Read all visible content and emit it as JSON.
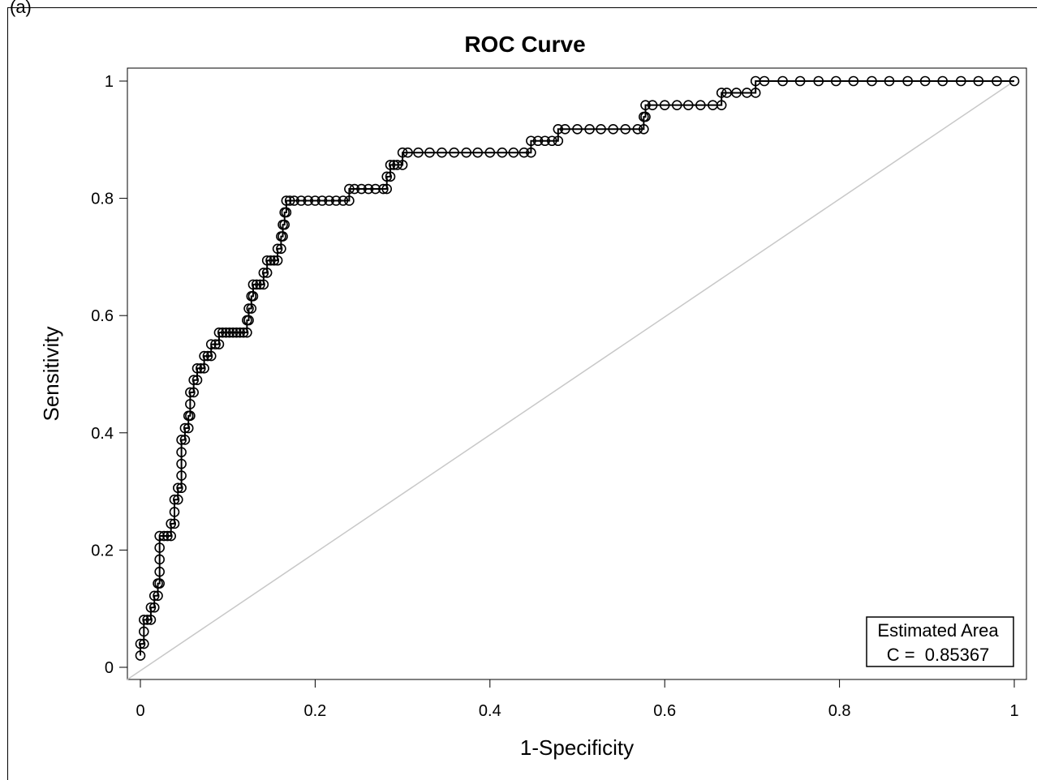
{
  "panel_label": "(a)",
  "chart_data": {
    "type": "line",
    "title": "ROC Curve",
    "xlabel": "1-Specificity",
    "ylabel": "Sensitivity",
    "xlim": [
      0,
      1
    ],
    "ylim": [
      0,
      1
    ],
    "x_ticks": [
      "0",
      "0.2",
      "0.4",
      "0.6",
      "0.8",
      "1"
    ],
    "y_ticks": [
      "0",
      "0.2",
      "0.4",
      "0.6",
      "0.8",
      "1"
    ],
    "grid": false,
    "legend_position": "bottom-right",
    "annotation": {
      "title": "Estimated Area",
      "text": "C =  0.85367"
    },
    "reference_line": {
      "from": [
        0,
        0
      ],
      "to": [
        1,
        1
      ],
      "color": "#c8c8c8"
    },
    "marker": "circle",
    "series": [
      {
        "points": [
          [
            0.0,
            0.02
          ],
          [
            0.0,
            0.04
          ],
          [
            0.004,
            0.04
          ],
          [
            0.004,
            0.061
          ],
          [
            0.004,
            0.081
          ],
          [
            0.008,
            0.081
          ],
          [
            0.012,
            0.081
          ],
          [
            0.012,
            0.102
          ],
          [
            0.016,
            0.102
          ],
          [
            0.016,
            0.122
          ],
          [
            0.02,
            0.122
          ],
          [
            0.02,
            0.143
          ],
          [
            0.022,
            0.143
          ],
          [
            0.022,
            0.163
          ],
          [
            0.022,
            0.184
          ],
          [
            0.022,
            0.204
          ],
          [
            0.022,
            0.224
          ],
          [
            0.027,
            0.224
          ],
          [
            0.031,
            0.224
          ],
          [
            0.035,
            0.224
          ],
          [
            0.035,
            0.245
          ],
          [
            0.039,
            0.245
          ],
          [
            0.039,
            0.265
          ],
          [
            0.039,
            0.286
          ],
          [
            0.043,
            0.286
          ],
          [
            0.043,
            0.306
          ],
          [
            0.047,
            0.306
          ],
          [
            0.047,
            0.327
          ],
          [
            0.047,
            0.347
          ],
          [
            0.047,
            0.367
          ],
          [
            0.047,
            0.388
          ],
          [
            0.051,
            0.388
          ],
          [
            0.051,
            0.408
          ],
          [
            0.055,
            0.408
          ],
          [
            0.055,
            0.429
          ],
          [
            0.057,
            0.429
          ],
          [
            0.057,
            0.449
          ],
          [
            0.057,
            0.469
          ],
          [
            0.061,
            0.469
          ],
          [
            0.061,
            0.49
          ],
          [
            0.065,
            0.49
          ],
          [
            0.065,
            0.51
          ],
          [
            0.069,
            0.51
          ],
          [
            0.073,
            0.51
          ],
          [
            0.073,
            0.531
          ],
          [
            0.077,
            0.531
          ],
          [
            0.081,
            0.531
          ],
          [
            0.081,
            0.551
          ],
          [
            0.086,
            0.551
          ],
          [
            0.09,
            0.551
          ],
          [
            0.09,
            0.571
          ],
          [
            0.094,
            0.571
          ],
          [
            0.098,
            0.571
          ],
          [
            0.102,
            0.571
          ],
          [
            0.106,
            0.571
          ],
          [
            0.11,
            0.571
          ],
          [
            0.114,
            0.571
          ],
          [
            0.118,
            0.571
          ],
          [
            0.122,
            0.571
          ],
          [
            0.122,
            0.592
          ],
          [
            0.124,
            0.592
          ],
          [
            0.124,
            0.612
          ],
          [
            0.127,
            0.612
          ],
          [
            0.127,
            0.633
          ],
          [
            0.129,
            0.633
          ],
          [
            0.129,
            0.653
          ],
          [
            0.133,
            0.653
          ],
          [
            0.137,
            0.653
          ],
          [
            0.141,
            0.653
          ],
          [
            0.141,
            0.673
          ],
          [
            0.145,
            0.673
          ],
          [
            0.145,
            0.694
          ],
          [
            0.149,
            0.694
          ],
          [
            0.153,
            0.694
          ],
          [
            0.157,
            0.694
          ],
          [
            0.157,
            0.714
          ],
          [
            0.161,
            0.714
          ],
          [
            0.161,
            0.735
          ],
          [
            0.163,
            0.735
          ],
          [
            0.163,
            0.755
          ],
          [
            0.165,
            0.755
          ],
          [
            0.165,
            0.776
          ],
          [
            0.167,
            0.776
          ],
          [
            0.167,
            0.796
          ],
          [
            0.171,
            0.796
          ],
          [
            0.176,
            0.796
          ],
          [
            0.184,
            0.796
          ],
          [
            0.192,
            0.796
          ],
          [
            0.2,
            0.796
          ],
          [
            0.208,
            0.796
          ],
          [
            0.216,
            0.796
          ],
          [
            0.224,
            0.796
          ],
          [
            0.232,
            0.796
          ],
          [
            0.239,
            0.796
          ],
          [
            0.239,
            0.816
          ],
          [
            0.245,
            0.816
          ],
          [
            0.253,
            0.816
          ],
          [
            0.261,
            0.816
          ],
          [
            0.269,
            0.816
          ],
          [
            0.278,
            0.816
          ],
          [
            0.282,
            0.816
          ],
          [
            0.282,
            0.837
          ],
          [
            0.286,
            0.837
          ],
          [
            0.286,
            0.857
          ],
          [
            0.29,
            0.857
          ],
          [
            0.294,
            0.857
          ],
          [
            0.3,
            0.857
          ],
          [
            0.3,
            0.878
          ],
          [
            0.306,
            0.878
          ],
          [
            0.318,
            0.878
          ],
          [
            0.331,
            0.878
          ],
          [
            0.345,
            0.878
          ],
          [
            0.359,
            0.878
          ],
          [
            0.373,
            0.878
          ],
          [
            0.386,
            0.878
          ],
          [
            0.4,
            0.878
          ],
          [
            0.414,
            0.878
          ],
          [
            0.427,
            0.878
          ],
          [
            0.439,
            0.878
          ],
          [
            0.447,
            0.878
          ],
          [
            0.447,
            0.898
          ],
          [
            0.455,
            0.898
          ],
          [
            0.463,
            0.898
          ],
          [
            0.471,
            0.898
          ],
          [
            0.478,
            0.898
          ],
          [
            0.478,
            0.918
          ],
          [
            0.486,
            0.918
          ],
          [
            0.5,
            0.918
          ],
          [
            0.514,
            0.918
          ],
          [
            0.527,
            0.918
          ],
          [
            0.541,
            0.918
          ],
          [
            0.555,
            0.918
          ],
          [
            0.569,
            0.918
          ],
          [
            0.576,
            0.918
          ],
          [
            0.576,
            0.939
          ],
          [
            0.578,
            0.939
          ],
          [
            0.578,
            0.959
          ],
          [
            0.586,
            0.959
          ],
          [
            0.6,
            0.959
          ],
          [
            0.614,
            0.959
          ],
          [
            0.627,
            0.959
          ],
          [
            0.641,
            0.959
          ],
          [
            0.655,
            0.959
          ],
          [
            0.665,
            0.959
          ],
          [
            0.665,
            0.98
          ],
          [
            0.671,
            0.98
          ],
          [
            0.682,
            0.98
          ],
          [
            0.694,
            0.98
          ],
          [
            0.704,
            0.98
          ],
          [
            0.704,
            1.0
          ],
          [
            0.714,
            1.0
          ],
          [
            0.735,
            1.0
          ],
          [
            0.755,
            1.0
          ],
          [
            0.776,
            1.0
          ],
          [
            0.796,
            1.0
          ],
          [
            0.816,
            1.0
          ],
          [
            0.837,
            1.0
          ],
          [
            0.857,
            1.0
          ],
          [
            0.878,
            1.0
          ],
          [
            0.898,
            1.0
          ],
          [
            0.918,
            1.0
          ],
          [
            0.939,
            1.0
          ],
          [
            0.959,
            1.0
          ],
          [
            0.98,
            1.0
          ],
          [
            1.0,
            1.0
          ]
        ]
      }
    ]
  }
}
